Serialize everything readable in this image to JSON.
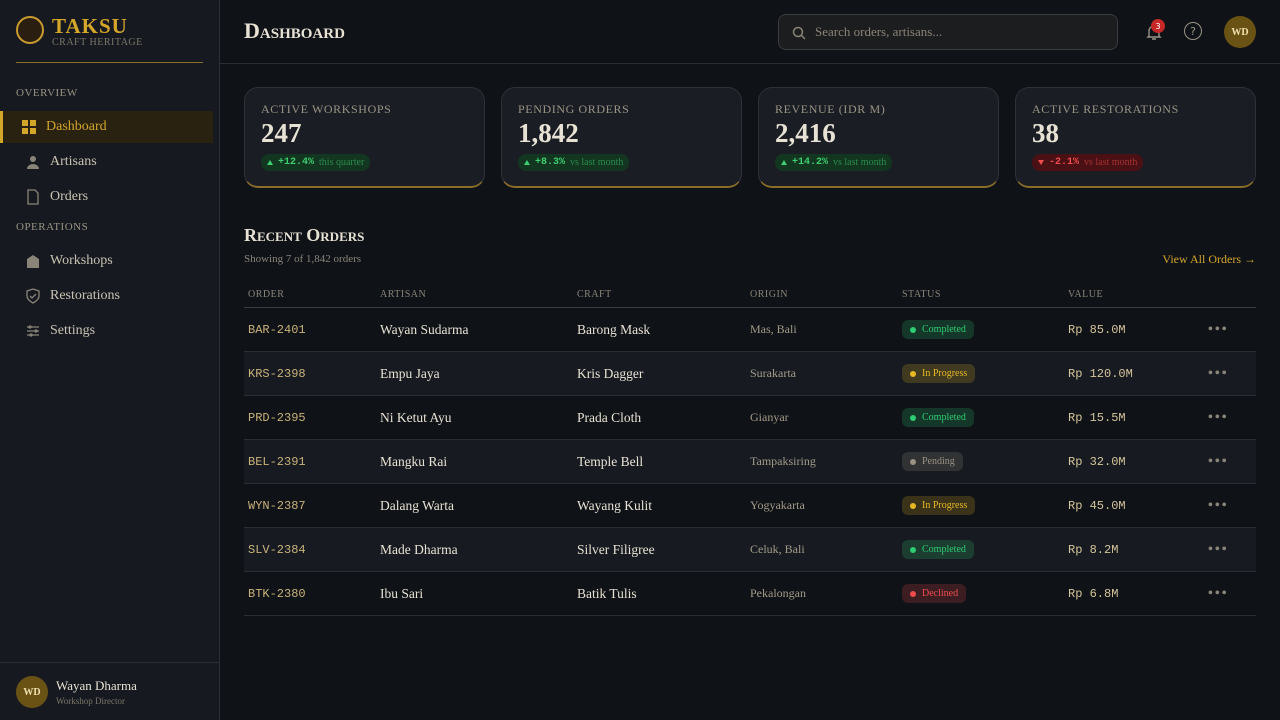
{
  "brand": {
    "name": "TAKSU",
    "tagline": "CRAFT HERITAGE"
  },
  "nav": {
    "active": "0.0",
    "sections": [
      {
        "title": "OVERVIEW",
        "items": [
          "Dashboard",
          "Artisans",
          "Orders"
        ]
      },
      {
        "title": "OPERATIONS",
        "items": [
          "Workshops",
          "Restorations",
          "Settings"
        ]
      }
    ]
  },
  "user": {
    "initials": "WD",
    "name": "Wayan Dharma",
    "role": "Workshop Director"
  },
  "header": {
    "title": "Dashboard",
    "search_placeholder": "Search orders, artisans...",
    "notifications": "3",
    "avatar": "WD"
  },
  "stats": [
    {
      "label": "ACTIVE WORKSHOPS",
      "value": "247",
      "change": "+12.4%",
      "period": "this quarter"
    },
    {
      "label": "PENDING ORDERS",
      "value": "1,842",
      "change": "+8.3%",
      "period": "vs last month"
    },
    {
      "label": "REVENUE (IDR M)",
      "value": "2,416",
      "change": "+14.2%",
      "period": "vs last month"
    },
    {
      "label": "ACTIVE RESTORATIONS",
      "value": "38",
      "change": "-2.1%",
      "period": "vs last month"
    }
  ],
  "orders": {
    "title": "Recent Orders",
    "subtitle": "Showing 7 of 1,842 orders",
    "view_all": "View All Orders →",
    "columns": [
      "ORDER",
      "ARTISAN",
      "CRAFT",
      "ORIGIN",
      "STATUS",
      "VALUE"
    ],
    "rows": [
      {
        "order": "BAR-2401",
        "artisan": "Wayan Sudarma",
        "craft": "Barong Mask",
        "origin": "Mas, Bali",
        "status": "Completed",
        "status_color": "#2ecc71",
        "value": "Rp 85.0M"
      },
      {
        "order": "KRS-2398",
        "artisan": "Empu Jaya",
        "craft": "Kris Dagger",
        "origin": "Surakarta",
        "status": "In Progress",
        "status_color": "#e8b923",
        "value": "Rp 120.0M"
      },
      {
        "order": "PRD-2395",
        "artisan": "Ni Ketut Ayu",
        "craft": "Prada Cloth",
        "origin": "Gianyar",
        "status": "Completed",
        "status_color": "#2ecc71",
        "value": "Rp 15.5M"
      },
      {
        "order": "BEL-2391",
        "artisan": "Mangku Rai",
        "craft": "Temple Bell",
        "origin": "Tampaksiring",
        "status": "Pending",
        "status_color": "#9a9384",
        "value": "Rp 32.0M"
      },
      {
        "order": "WYN-2387",
        "artisan": "Dalang Warta",
        "craft": "Wayang Kulit",
        "origin": "Yogyakarta",
        "status": "In Progress",
        "status_color": "#e8b923",
        "value": "Rp 45.0M"
      },
      {
        "order": "SLV-2384",
        "artisan": "Made Dharma",
        "craft": "Silver Filigree",
        "origin": "Celuk, Bali",
        "status": "Completed",
        "status_color": "#2ecc71",
        "value": "Rp 8.2M"
      },
      {
        "order": "BTK-2380",
        "artisan": "Ibu Sari",
        "craft": "Batik Tulis",
        "origin": "Pekalongan",
        "status": "Declined",
        "status_color": "#ef4d4d",
        "value": "Rp 6.8M"
      }
    ]
  }
}
